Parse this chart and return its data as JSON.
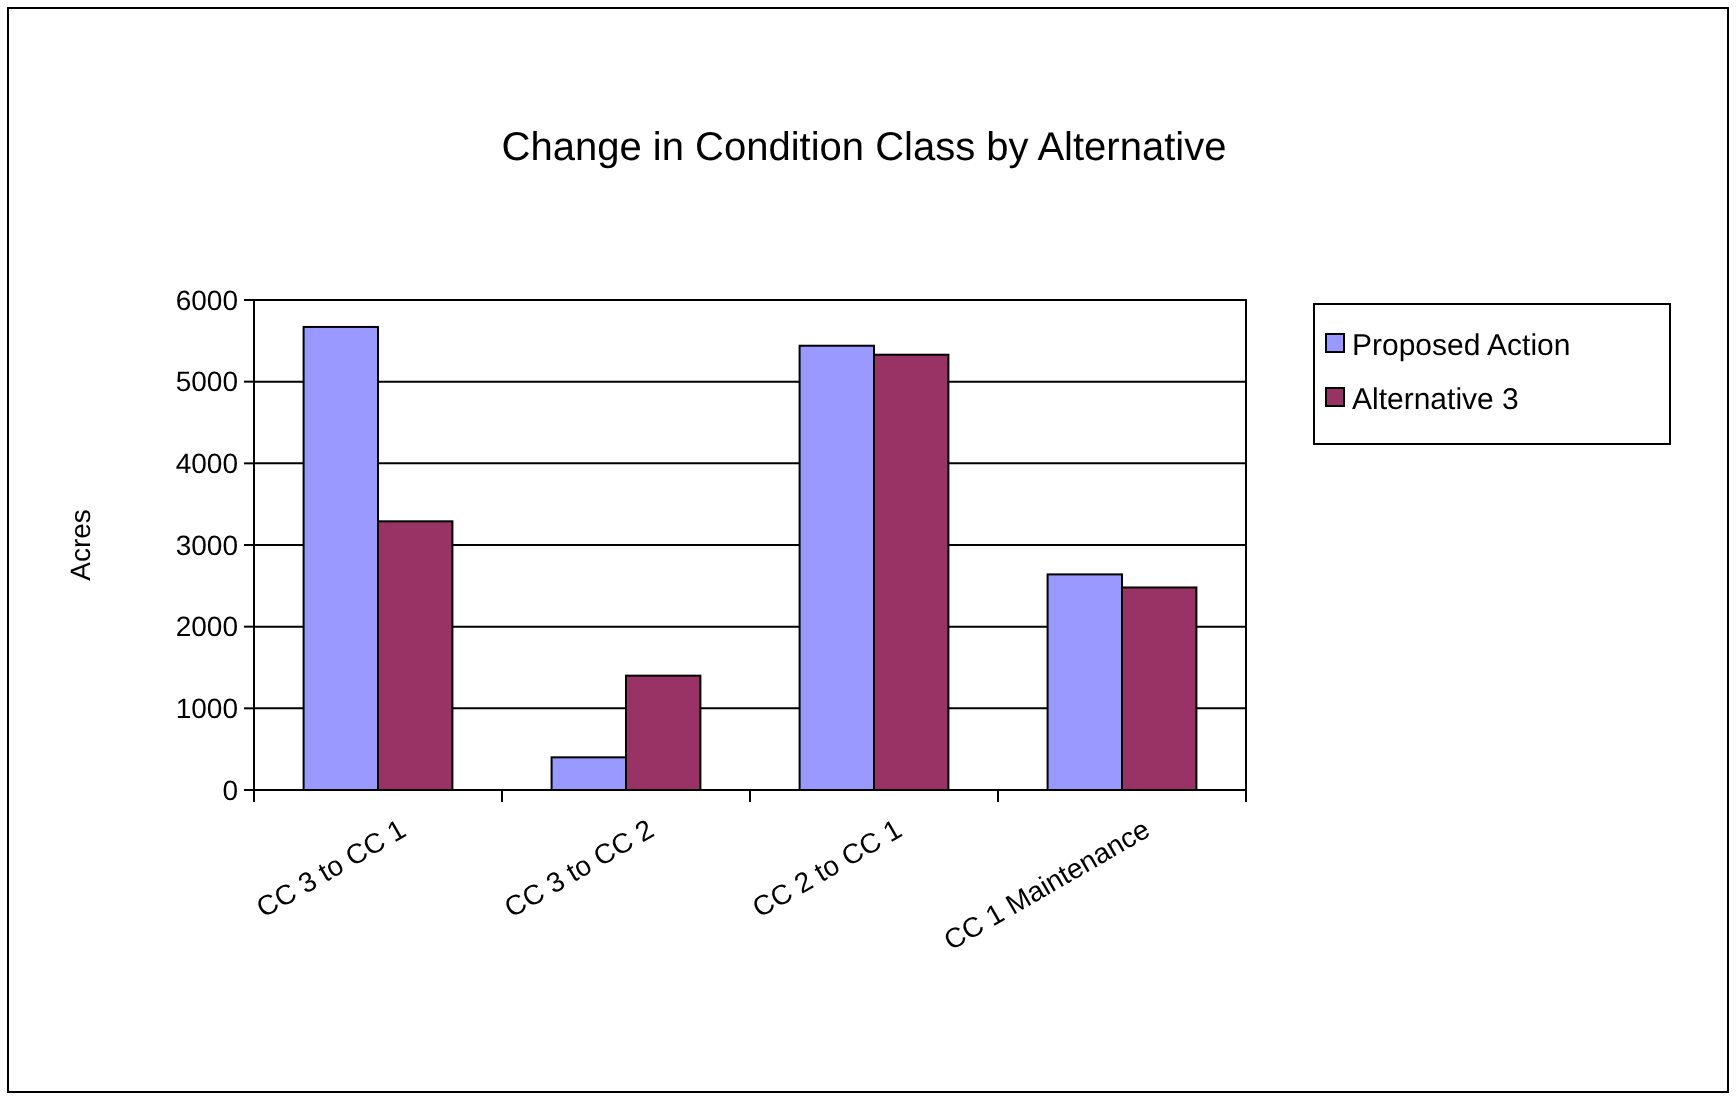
{
  "chart_data": {
    "type": "bar",
    "title": "Change in Condition Class by Alternative",
    "ylabel": "Acres",
    "categories": [
      "CC 3 to CC 1",
      "CC 3 to CC 2",
      "CC 2 to CC 1",
      "CC 1 Maintenance"
    ],
    "series": [
      {
        "name": "Proposed Action",
        "color": "#9999ff",
        "values": [
          5670,
          400,
          5440,
          2640
        ]
      },
      {
        "name": "Alternative 3",
        "color": "#993366",
        "values": [
          3290,
          1400,
          5330,
          2480
        ]
      }
    ],
    "ylim": [
      0,
      6000
    ],
    "yticks": [
      0,
      1000,
      2000,
      3000,
      4000,
      5000,
      6000
    ],
    "grid": "y",
    "legend": "right"
  }
}
